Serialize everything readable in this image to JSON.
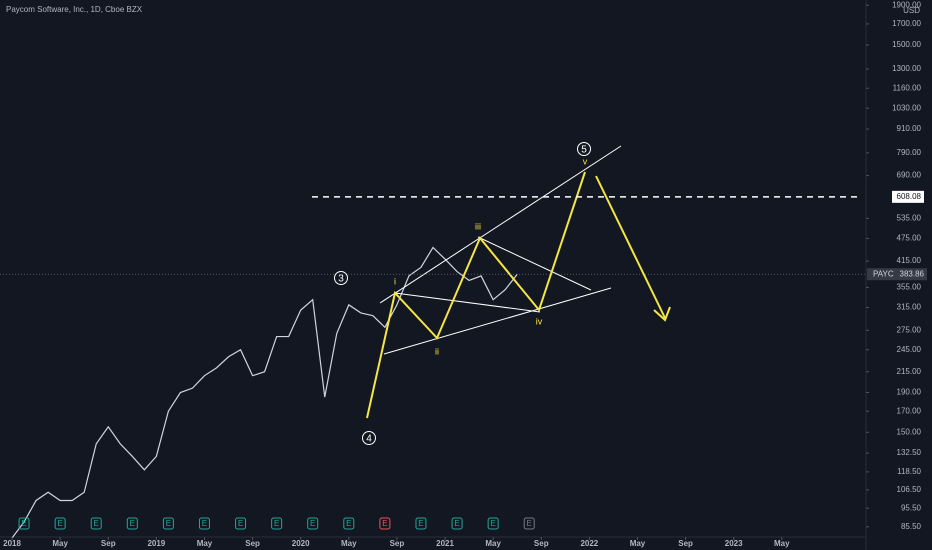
{
  "chart_data": {
    "type": "line",
    "title": "Paycom Software, Inc., 1D, Cboe BZX",
    "currency": "USD",
    "log_scale": true,
    "x": [
      "2018-01",
      "2018-02",
      "2018-03",
      "2018-04",
      "2018-05",
      "2018-06",
      "2018-07",
      "2018-08",
      "2018-09",
      "2018-10",
      "2018-11",
      "2018-12",
      "2019-01",
      "2019-02",
      "2019-03",
      "2019-04",
      "2019-05",
      "2019-06",
      "2019-07",
      "2019-08",
      "2019-09",
      "2019-10",
      "2019-11",
      "2019-12",
      "2020-01",
      "2020-02",
      "2020-03",
      "2020-04",
      "2020-05",
      "2020-06",
      "2020-07",
      "2020-08",
      "2020-09",
      "2020-10",
      "2020-11",
      "2020-12",
      "2021-01",
      "2021-02",
      "2021-03",
      "2021-04",
      "2021-05",
      "2021-06",
      "2021-07"
    ],
    "series": [
      {
        "name": "PAYC",
        "color": "#d1d4dc",
        "values": [
          80,
          88,
          100,
          105,
          100,
          100,
          105,
          140,
          155,
          140,
          130,
          120,
          130,
          170,
          190,
          195,
          210,
          220,
          235,
          245,
          210,
          215,
          265,
          265,
          310,
          330,
          185,
          270,
          320,
          305,
          300,
          280,
          320,
          380,
          400,
          450,
          420,
          390,
          370,
          380,
          330,
          350,
          383.86
        ]
      }
    ],
    "xlim": [
      "2017-12",
      "2023-12"
    ],
    "xticks": [
      {
        "value": "2018-01",
        "label": "2018"
      },
      {
        "value": "2018-05",
        "label": "May"
      },
      {
        "value": "2018-09",
        "label": "Sep"
      },
      {
        "value": "2019-01",
        "label": "2019"
      },
      {
        "value": "2019-05",
        "label": "May"
      },
      {
        "value": "2019-09",
        "label": "Sep"
      },
      {
        "value": "2020-01",
        "label": "2020"
      },
      {
        "value": "2020-05",
        "label": "May"
      },
      {
        "value": "2020-09",
        "label": "Sep"
      },
      {
        "value": "2021-01",
        "label": "2021"
      },
      {
        "value": "2021-05",
        "label": "May"
      },
      {
        "value": "2021-09",
        "label": "Sep"
      },
      {
        "value": "2022-01",
        "label": "2022"
      },
      {
        "value": "2022-05",
        "label": "May"
      },
      {
        "value": "2022-09",
        "label": "Sep"
      },
      {
        "value": "2023-01",
        "label": "2023"
      },
      {
        "value": "2023-05",
        "label": "May"
      }
    ],
    "ylim": [
      80,
      1960
    ],
    "yticks": [
      {
        "value": 1900,
        "label": "1900.00"
      },
      {
        "value": 1700,
        "label": "1700.00"
      },
      {
        "value": 1500,
        "label": "1500.00"
      },
      {
        "value": 1300,
        "label": "1300.00"
      },
      {
        "value": 1160,
        "label": "1160.00"
      },
      {
        "value": 1030,
        "label": "1030.00"
      },
      {
        "value": 910,
        "label": "910.00"
      },
      {
        "value": 790,
        "label": "790.00"
      },
      {
        "value": 690,
        "label": "690.00"
      },
      {
        "value": 535,
        "label": "535.00"
      },
      {
        "value": 475,
        "label": "475.00"
      },
      {
        "value": 415,
        "label": "415.00"
      },
      {
        "value": 355,
        "label": "355.00"
      },
      {
        "value": 315,
        "label": "315.00"
      },
      {
        "value": 275,
        "label": "275.00"
      },
      {
        "value": 245,
        "label": "245.00"
      },
      {
        "value": 215,
        "label": "215.00"
      },
      {
        "value": 190,
        "label": "190.00"
      },
      {
        "value": 170,
        "label": "170.00"
      },
      {
        "value": 150,
        "label": "150.00"
      },
      {
        "value": 132.5,
        "label": "132.50"
      },
      {
        "value": 118.5,
        "label": "118.50"
      },
      {
        "value": 106.5,
        "label": "106.50"
      },
      {
        "value": 95.5,
        "label": "95.50"
      },
      {
        "value": 85.5,
        "label": "85.50"
      }
    ],
    "level": {
      "value": 608.08,
      "label": "608.08"
    },
    "last_price": {
      "symbol": "PAYC",
      "value": 383.86,
      "label": "383.86"
    },
    "earnings_label": "E",
    "earnings": [
      {
        "x": "2018-02",
        "color": "#26a69a"
      },
      {
        "x": "2018-05",
        "color": "#26a69a"
      },
      {
        "x": "2018-08",
        "color": "#26a69a"
      },
      {
        "x": "2018-11",
        "color": "#26a69a"
      },
      {
        "x": "2019-02",
        "color": "#26a69a"
      },
      {
        "x": "2019-05",
        "color": "#26a69a"
      },
      {
        "x": "2019-08",
        "color": "#26a69a"
      },
      {
        "x": "2019-11",
        "color": "#26a69a"
      },
      {
        "x": "2020-02",
        "color": "#26a69a"
      },
      {
        "x": "2020-05",
        "color": "#26a69a"
      },
      {
        "x": "2020-08",
        "color": "#ef5350"
      },
      {
        "x": "2020-11",
        "color": "#26a69a"
      },
      {
        "x": "2021-02",
        "color": "#26a69a"
      },
      {
        "x": "2021-05",
        "color": "#26a69a"
      },
      {
        "x": "2021-08",
        "color": "#787b86"
      }
    ],
    "wave_labels": [
      "3",
      "4",
      "5",
      "i",
      "ii",
      "iii",
      "iv",
      "v"
    ]
  }
}
